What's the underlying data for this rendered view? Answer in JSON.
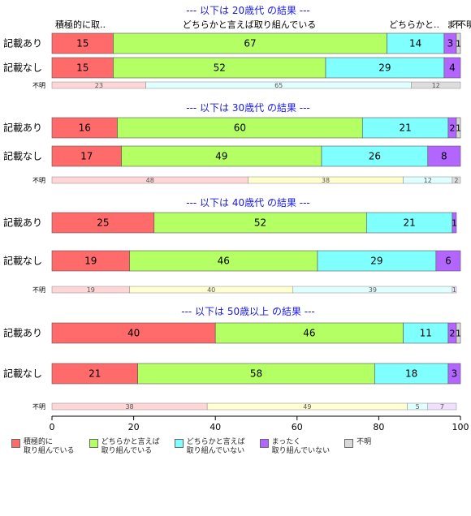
{
  "chart_data": {
    "type": "bar",
    "orientation": "horizontal",
    "stacked": true,
    "xlim": [
      0,
      100
    ],
    "xticks": [
      0,
      20,
      40,
      60,
      80,
      100
    ],
    "grid": false,
    "legend_position": "bottom",
    "categories": [
      "積極的に取り組んでいる",
      "どちらかと言えば取り組んでいる",
      "どちらかと言えば取り組んでいない",
      "まったく取り組んでいない",
      "不明"
    ],
    "colors": [
      "#ff6b6b",
      "#b4ff64",
      "#80ffff",
      "#b266ff",
      "#d9d9d9"
    ],
    "unknown_colors": [
      "#ffd6d6",
      "#e0ffff",
      "#dddddd"
    ],
    "unknown_colors_alt": [
      "#ffd6d6",
      "#ffffd0",
      "#e0ffff",
      "#dddddd"
    ],
    "top_labels": [
      "積極的に取..",
      "どちらかと言えば取り組んでいる",
      "どちらかと..",
      "ま",
      "不",
      "不明"
    ],
    "panels": [
      {
        "title": "--- 以下は 20歳代 の結果 ---",
        "rows": [
          {
            "label": "記載あり",
            "values": [
              15,
              67,
              14,
              3,
              1
            ]
          },
          {
            "label": "記載なし",
            "values": [
              15,
              52,
              29,
              4,
              0
            ]
          }
        ],
        "unknown": {
          "label": "不明",
          "values": [
            23,
            65,
            12
          ],
          "colors": "unknown_colors"
        }
      },
      {
        "title": "--- 以下は 30歳代 の結果 ---",
        "rows": [
          {
            "label": "記載あり",
            "values": [
              16,
              60,
              21,
              2,
              1
            ]
          },
          {
            "label": "記載なし",
            "values": [
              17,
              49,
              26,
              8,
              0
            ]
          }
        ],
        "unknown": {
          "label": "不明",
          "values": [
            48,
            38,
            12,
            2
          ],
          "colors": "unknown_colors_alt"
        }
      },
      {
        "title": "--- 以下は 40歳代 の結果 ---",
        "rows": [
          {
            "label": "記載あり",
            "values": [
              25,
              52,
              21,
              1,
              0
            ]
          },
          {
            "label": "記載なし",
            "values": [
              19,
              46,
              29,
              6,
              0
            ]
          }
        ],
        "unknown": {
          "label": "不明",
          "values": [
            19,
            40,
            39,
            1
          ],
          "colors": "unknown_colors_alt2"
        }
      },
      {
        "title": "--- 以下は 50歳以上 の結果 ---",
        "rows": [
          {
            "label": "記載あり",
            "values": [
              40,
              46,
              11,
              2,
              1
            ]
          },
          {
            "label": "記載なし",
            "values": [
              21,
              58,
              18,
              3,
              0
            ]
          }
        ],
        "unknown": {
          "label": "不明",
          "values": [
            38,
            49,
            5,
            7
          ],
          "colors": "unknown_colors_alt3"
        }
      }
    ],
    "unknown_colors_alt2": [
      "#ffd6d6",
      "#ffffd0",
      "#e0ffff",
      "#f0e0ff"
    ],
    "unknown_colors_alt3": [
      "#ffd6d6",
      "#ffffd0",
      "#e0ffff",
      "#f0e0ff"
    ]
  },
  "legend": [
    {
      "label": "積極的に\n取り組んでいる",
      "color": "#ff6b6b"
    },
    {
      "label": "どちらかと言えば\n取り組んでいる",
      "color": "#b4ff64"
    },
    {
      "label": "どちらかと言えば\n取り組んでいない",
      "color": "#80ffff"
    },
    {
      "label": "まったく\n取り組んでいない",
      "color": "#b266ff"
    },
    {
      "label": "不明",
      "color": "#d9d9d9"
    }
  ]
}
